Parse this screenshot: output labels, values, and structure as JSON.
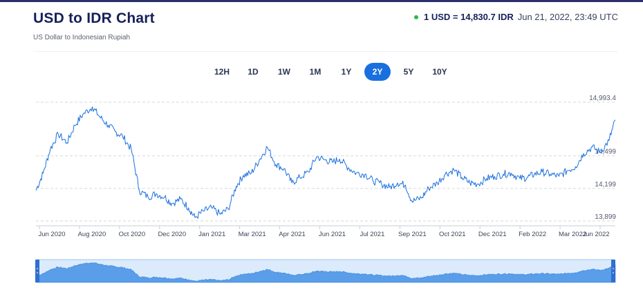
{
  "header": {
    "title": "USD to IDR Chart",
    "subtitle": "US Dollar to Indonesian Rupiah",
    "rate": "1 USD = 14,830.7 IDR",
    "timestamp": "Jun 21, 2022, 23:49 UTC",
    "status_color": "#2cba4b"
  },
  "tabs": [
    {
      "label": "12H",
      "active": false
    },
    {
      "label": "1D",
      "active": false
    },
    {
      "label": "1W",
      "active": false
    },
    {
      "label": "1M",
      "active": false
    },
    {
      "label": "1Y",
      "active": false
    },
    {
      "label": "2Y",
      "active": true
    },
    {
      "label": "5Y",
      "active": false
    },
    {
      "label": "10Y",
      "active": false
    }
  ],
  "chart_data": {
    "type": "line",
    "line_color": "#1a6fde",
    "y_ticks": [
      {
        "value": 14993.4,
        "label": "14,993.4"
      },
      {
        "value": 14499,
        "label": "14,499"
      },
      {
        "value": 14199,
        "label": "14,199"
      },
      {
        "value": 13899,
        "label": "13,899"
      }
    ],
    "ylim": [
      13899,
      14993.4
    ],
    "x_ticks": [
      "Jun 2020",
      "Aug 2020",
      "Oct 2020",
      "Dec 2020",
      "Jan 2021",
      "Mar 2021",
      "Apr 2021",
      "Jun 2021",
      "Jul 2021",
      "Sep 2021",
      "Oct 2021",
      "Dec 2021",
      "Feb 2022",
      "Mar 2022",
      "Jun 2022"
    ],
    "series": [
      {
        "x": [
          "2020-06-22",
          "2020-07-01",
          "2020-07-10",
          "2020-07-20",
          "2020-07-31",
          "2020-08-10",
          "2020-08-20",
          "2020-09-01",
          "2020-09-10",
          "2020-09-21",
          "2020-09-30",
          "2020-10-09",
          "2020-10-20",
          "2020-10-30",
          "2020-11-10",
          "2020-11-20",
          "2020-12-01",
          "2020-12-10",
          "2020-12-21",
          "2020-12-31",
          "2021-01-08",
          "2021-01-19",
          "2021-01-29",
          "2021-02-09",
          "2021-02-19",
          "2021-03-01",
          "2021-03-10",
          "2021-03-20",
          "2021-03-30",
          "2021-04-09",
          "2021-04-20",
          "2021-04-30",
          "2021-05-10",
          "2021-05-20",
          "2021-05-31",
          "2021-06-10",
          "2021-06-21",
          "2021-06-30",
          "2021-07-09",
          "2021-07-20",
          "2021-07-30",
          "2021-08-10",
          "2021-08-20",
          "2021-08-31",
          "2021-09-10",
          "2021-09-20",
          "2021-09-30",
          "2021-10-08",
          "2021-10-20",
          "2021-10-29",
          "2021-11-09",
          "2021-11-19",
          "2021-11-30",
          "2021-12-10",
          "2021-12-20",
          "2021-12-30",
          "2022-01-10",
          "2022-01-20",
          "2022-01-31",
          "2022-02-10",
          "2022-02-21",
          "2022-03-02",
          "2022-03-11",
          "2022-03-21",
          "2022-03-31",
          "2022-04-11",
          "2022-04-21",
          "2022-05-02",
          "2022-05-12",
          "2022-05-23",
          "2022-06-02",
          "2022-06-13",
          "2022-06-21"
        ],
        "values": [
          14180,
          14340,
          14560,
          14700,
          14620,
          14780,
          14880,
          14950,
          14860,
          14780,
          14720,
          14680,
          14560,
          14180,
          14120,
          14150,
          14120,
          14060,
          14100,
          14020,
          13930,
          13990,
          14020,
          13960,
          14010,
          14220,
          14320,
          14340,
          14460,
          14580,
          14420,
          14380,
          14250,
          14300,
          14350,
          14490,
          14460,
          14440,
          14470,
          14390,
          14340,
          14330,
          14270,
          14240,
          14210,
          14250,
          14230,
          14080,
          14110,
          14200,
          14250,
          14330,
          14370,
          14300,
          14250,
          14240,
          14290,
          14310,
          14330,
          14340,
          14290,
          14300,
          14330,
          14350,
          14330,
          14310,
          14360,
          14400,
          14520,
          14580,
          14530,
          14640,
          14830
        ]
      }
    ]
  }
}
